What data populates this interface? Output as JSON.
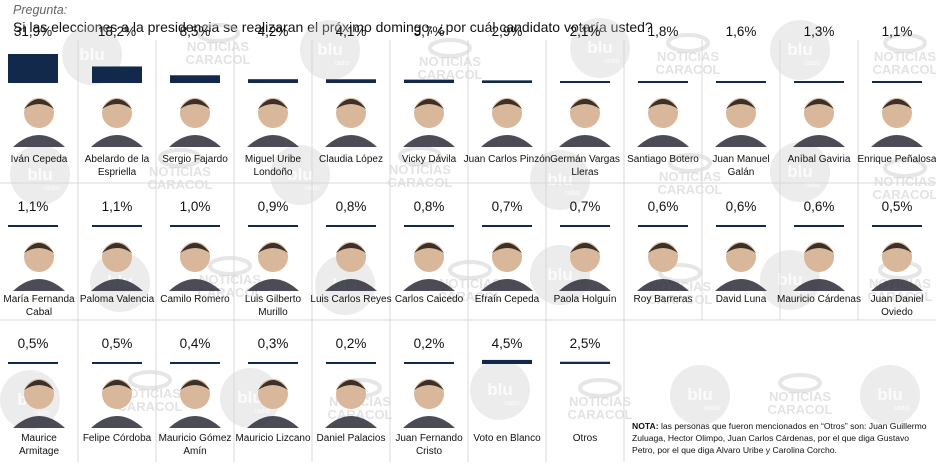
{
  "header": {
    "label": "Pregunta:",
    "question": "Si las elecciones a la presidencia se realizaran el próximo domingo, ¿por cuál candidato votaría usted?"
  },
  "watermark": {
    "logo_a": "blu",
    "logo_a_sub": "radio",
    "logo_b_line1": "NOTICIAS",
    "logo_b_line2": "CARACOL"
  },
  "note": {
    "label": "NOTA:",
    "text": "las personas que fueron mencionados en “Otros” son: Juan Guillermo Zuluaga, Hector Olimpo, Juan Carlos Cárdenas, por el que diga Gustavo Petro, por el que diga Alvaro Uribe y Carolina Corcho."
  },
  "colors": {
    "bar": "#13294b",
    "grid": "#d9d9d9",
    "avatar_skin": "#d9b79b",
    "avatar_suit": "#2b2d38"
  },
  "chart_data": {
    "type": "bar",
    "unit": "%",
    "categories": [
      "Iván Cepeda",
      "Abelardo de la Espriella",
      "Sergio Fajardo",
      "Miguel Uribe Londoño",
      "Claudia López",
      "Vicky Dávila",
      "Juan Carlos Pinzón",
      "Germán Vargas Lleras",
      "Santiago Botero",
      "Juan Manuel Galán",
      "Aníbal Gaviria",
      "Enrique Peñalosa",
      "María Fernanda Cabal",
      "Paloma Valencia",
      "Camilo Romero",
      "Luis Gilberto Murillo",
      "Luis Carlos Reyes",
      "Carlos Caicedo",
      "Efraín Cepeda",
      "Paola Holguín",
      "Roy Barreras",
      "David Luna",
      "Mauricio Cárdenas",
      "Juan Daniel Oviedo",
      "Maurice Armitage",
      "Felipe Córdoba",
      "Mauricio Gómez Amín",
      "Mauricio Lizcano",
      "Daniel Palacios",
      "Juan Fernando Cristo",
      "Voto en Blanco",
      "Otros"
    ],
    "values": [
      31.9,
      18.2,
      8.5,
      4.2,
      4.1,
      3.7,
      2.9,
      2.1,
      1.8,
      1.6,
      1.3,
      1.1,
      1.1,
      1.1,
      1.0,
      0.9,
      0.8,
      0.8,
      0.7,
      0.7,
      0.6,
      0.6,
      0.6,
      0.5,
      0.5,
      0.5,
      0.4,
      0.3,
      0.2,
      0.2,
      4.5,
      2.5
    ],
    "data_labels": [
      "31,9%",
      "18,2%",
      "8,5%",
      "4,2%",
      "4,1%",
      "3,7%",
      "2,9%",
      "2,1%",
      "1,8%",
      "1,6%",
      "1,3%",
      "1,1%",
      "1,1%",
      "1,1%",
      "1,0%",
      "0,9%",
      "0,8%",
      "0,8%",
      "0,7%",
      "0,7%",
      "0,6%",
      "0,6%",
      "0,6%",
      "0,5%",
      "0,5%",
      "0,5%",
      "0,4%",
      "0,3%",
      "0,2%",
      "0,2%",
      "4,5%",
      "2,5%"
    ],
    "display_names": [
      [
        "Iván Cepeda"
      ],
      [
        "Abelardo de la",
        "Espriella"
      ],
      [
        "Sergio Fajardo"
      ],
      [
        "Miguel Uribe",
        "Londoño"
      ],
      [
        "Claudia López"
      ],
      [
        "Vicky Dávila"
      ],
      [
        "Juan Carlos Pinzón"
      ],
      [
        "Germán Vargas",
        "Lleras"
      ],
      [
        "Santiago Botero"
      ],
      [
        "Juan Manuel",
        "Galán"
      ],
      [
        "Aníbal Gaviria"
      ],
      [
        "Enrique Peñalosa"
      ],
      [
        "María Fernanda",
        "Cabal"
      ],
      [
        "Paloma Valencia"
      ],
      [
        "Camilo Romero"
      ],
      [
        "Luis Gilberto",
        "Murillo"
      ],
      [
        "Luis Carlos Reyes"
      ],
      [
        "Carlos Caicedo"
      ],
      [
        "Efraín Cepeda"
      ],
      [
        "Paola Holguín"
      ],
      [
        "Roy Barreras"
      ],
      [
        "David Luna"
      ],
      [
        "Mauricio Cárdenas"
      ],
      [
        "Juan Daniel",
        "Oviedo"
      ],
      [
        "Maurice",
        "Armitage"
      ],
      [
        "Felipe Córdoba"
      ],
      [
        "Mauricio Gómez",
        "Amín"
      ],
      [
        "Mauricio Lizcano"
      ],
      [
        "Daniel Palacios"
      ],
      [
        "Juan Fernando",
        "Cristo"
      ],
      [
        "Voto en Blanco"
      ],
      [
        "Otros"
      ]
    ],
    "ylim": [
      0,
      31.9
    ]
  }
}
